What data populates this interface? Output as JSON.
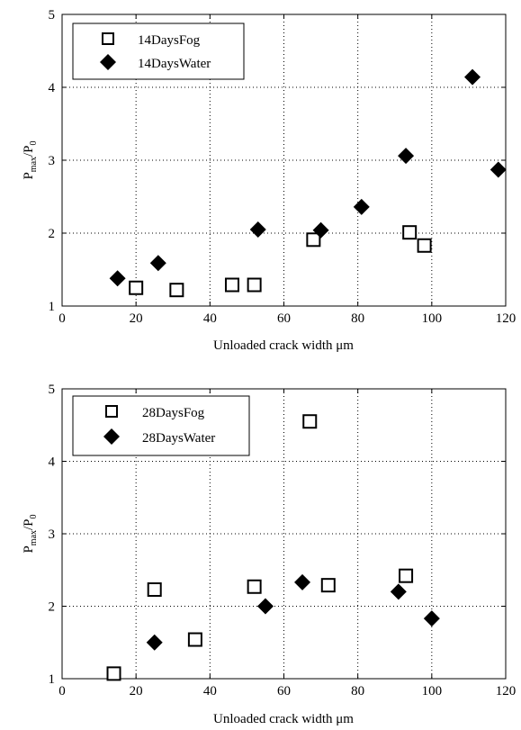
{
  "chart_data": [
    {
      "type": "scatter",
      "xlabel": "Unloaded crack width μm",
      "ylabel_main": "P",
      "ylabel_sub1": "max",
      "ylabel_mid": "/P",
      "ylabel_sub2": "0",
      "xlim": [
        0,
        120
      ],
      "ylim": [
        1,
        5
      ],
      "xticks": [
        "0",
        "20",
        "40",
        "60",
        "80",
        "100",
        "120"
      ],
      "yticks": [
        "1",
        "2",
        "3",
        "4",
        "5"
      ],
      "grid": true,
      "legend_position": "top-left",
      "series": [
        {
          "name": "14DaysFog",
          "marker": "square-open",
          "points": [
            [
              20,
              1.25
            ],
            [
              31,
              1.22
            ],
            [
              46,
              1.29
            ],
            [
              52,
              1.29
            ],
            [
              68,
              1.91
            ],
            [
              94,
              2.01
            ],
            [
              98,
              1.83
            ]
          ]
        },
        {
          "name": "14DaysWater",
          "marker": "diamond-filled",
          "points": [
            [
              15,
              1.38
            ],
            [
              26,
              1.59
            ],
            [
              53,
              2.05
            ],
            [
              70,
              2.04
            ],
            [
              81,
              2.36
            ],
            [
              93,
              3.06
            ],
            [
              111,
              4.14
            ],
            [
              118,
              2.87
            ]
          ]
        }
      ]
    },
    {
      "type": "scatter",
      "xlabel": "Unloaded crack width μm",
      "ylabel_main": "P",
      "ylabel_sub1": "max",
      "ylabel_mid": "/P",
      "ylabel_sub2": "0",
      "xlim": [
        0,
        120
      ],
      "ylim": [
        1,
        5
      ],
      "xticks": [
        "0",
        "20",
        "40",
        "60",
        "80",
        "100",
        "120"
      ],
      "yticks": [
        "1",
        "2",
        "3",
        "4",
        "5"
      ],
      "grid": true,
      "legend_position": "top-left",
      "series": [
        {
          "name": "28DaysFog",
          "marker": "square-open",
          "points": [
            [
              14,
              1.07
            ],
            [
              25,
              2.23
            ],
            [
              36,
              1.54
            ],
            [
              52,
              2.27
            ],
            [
              67,
              4.55
            ],
            [
              72,
              2.29
            ],
            [
              93,
              2.42
            ]
          ]
        },
        {
          "name": "28DaysWater",
          "marker": "diamond-filled",
          "points": [
            [
              25,
              1.5
            ],
            [
              55,
              2.0
            ],
            [
              65,
              2.33
            ],
            [
              91,
              2.2
            ],
            [
              100,
              1.83
            ]
          ]
        }
      ]
    }
  ]
}
